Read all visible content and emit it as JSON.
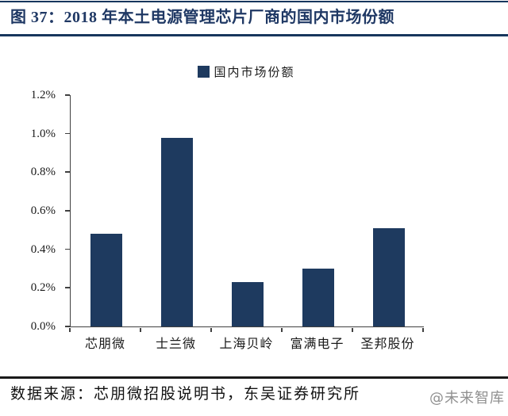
{
  "figure": {
    "title": "图 37：2018 年本土电源管理芯片厂商的国内市场份额",
    "source": "数据来源：芯朋微招股说明书，东吴证券研究所",
    "watermark": "@未来智库"
  },
  "colors": {
    "bar": "#1e3a5f",
    "title": "#1f3864",
    "rule": "#17365d",
    "axis": "#404040",
    "text": "#1a1a1a",
    "watermark": "#909090"
  },
  "chart_data": {
    "type": "bar",
    "title": "图 37：2018 年本土电源管理芯片厂商的国内市场份额",
    "legend": [
      "国内市场份额"
    ],
    "legend_position": "top-center",
    "categories": [
      "芯朋微",
      "士兰微",
      "上海贝岭",
      "富满电子",
      "圣邦股份"
    ],
    "values": [
      0.48,
      0.98,
      0.23,
      0.3,
      0.51
    ],
    "unit": "%",
    "xlabel": "",
    "ylabel": "",
    "ylim": [
      0,
      1.2
    ],
    "ytick_step": 0.2,
    "yticks": [
      "0.0%",
      "0.2%",
      "0.4%",
      "0.6%",
      "0.8%",
      "1.0%",
      "1.2%"
    ],
    "grid": false
  }
}
